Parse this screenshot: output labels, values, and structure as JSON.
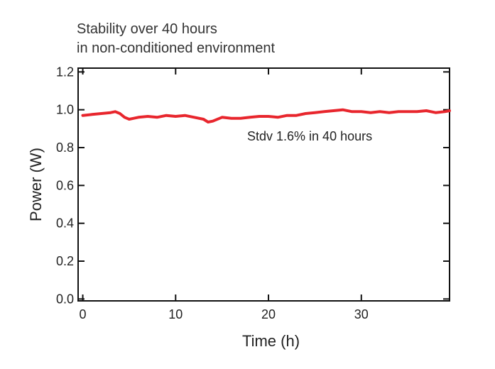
{
  "chart_data": {
    "type": "line",
    "title_lines": [
      "Stability over 40 hours",
      "in non-conditioned environment"
    ],
    "xlabel": "Time (h)",
    "ylabel": "Power (W)",
    "xlim": [
      -0.5,
      39.5
    ],
    "ylim": [
      -0.01,
      1.22
    ],
    "x_ticks": [
      0,
      10,
      20,
      30
    ],
    "x_tick_labels": [
      "0",
      "10",
      "20",
      "30"
    ],
    "y_ticks": [
      0.0,
      0.2,
      0.4,
      0.6,
      0.8,
      1.0,
      1.2
    ],
    "y_tick_labels": [
      "0.0",
      "0.2",
      "0.4",
      "0.6",
      "0.8",
      "1.0",
      "1.2"
    ],
    "grid": false,
    "annotation": "Stdv 1.6% in 40 hours",
    "series": [
      {
        "color": "#e8262d",
        "x": [
          0,
          1,
          2,
          3,
          3.5,
          4,
          4.5,
          5,
          5.5,
          6,
          7,
          8,
          9,
          10,
          11,
          12,
          13,
          13.5,
          14,
          15,
          16,
          17,
          18,
          19,
          20,
          21,
          22,
          23,
          24,
          25,
          26,
          27,
          28,
          29,
          30,
          31,
          32,
          33,
          34,
          35,
          36,
          37,
          38,
          39,
          39.5
        ],
        "y": [
          0.97,
          0.975,
          0.98,
          0.985,
          0.99,
          0.98,
          0.96,
          0.95,
          0.955,
          0.96,
          0.965,
          0.96,
          0.97,
          0.965,
          0.97,
          0.96,
          0.95,
          0.935,
          0.94,
          0.96,
          0.955,
          0.955,
          0.96,
          0.965,
          0.965,
          0.96,
          0.97,
          0.97,
          0.98,
          0.985,
          0.99,
          0.995,
          1.0,
          0.99,
          0.99,
          0.985,
          0.99,
          0.985,
          0.99,
          0.99,
          0.99,
          0.995,
          0.985,
          0.99,
          0.995
        ]
      }
    ]
  }
}
